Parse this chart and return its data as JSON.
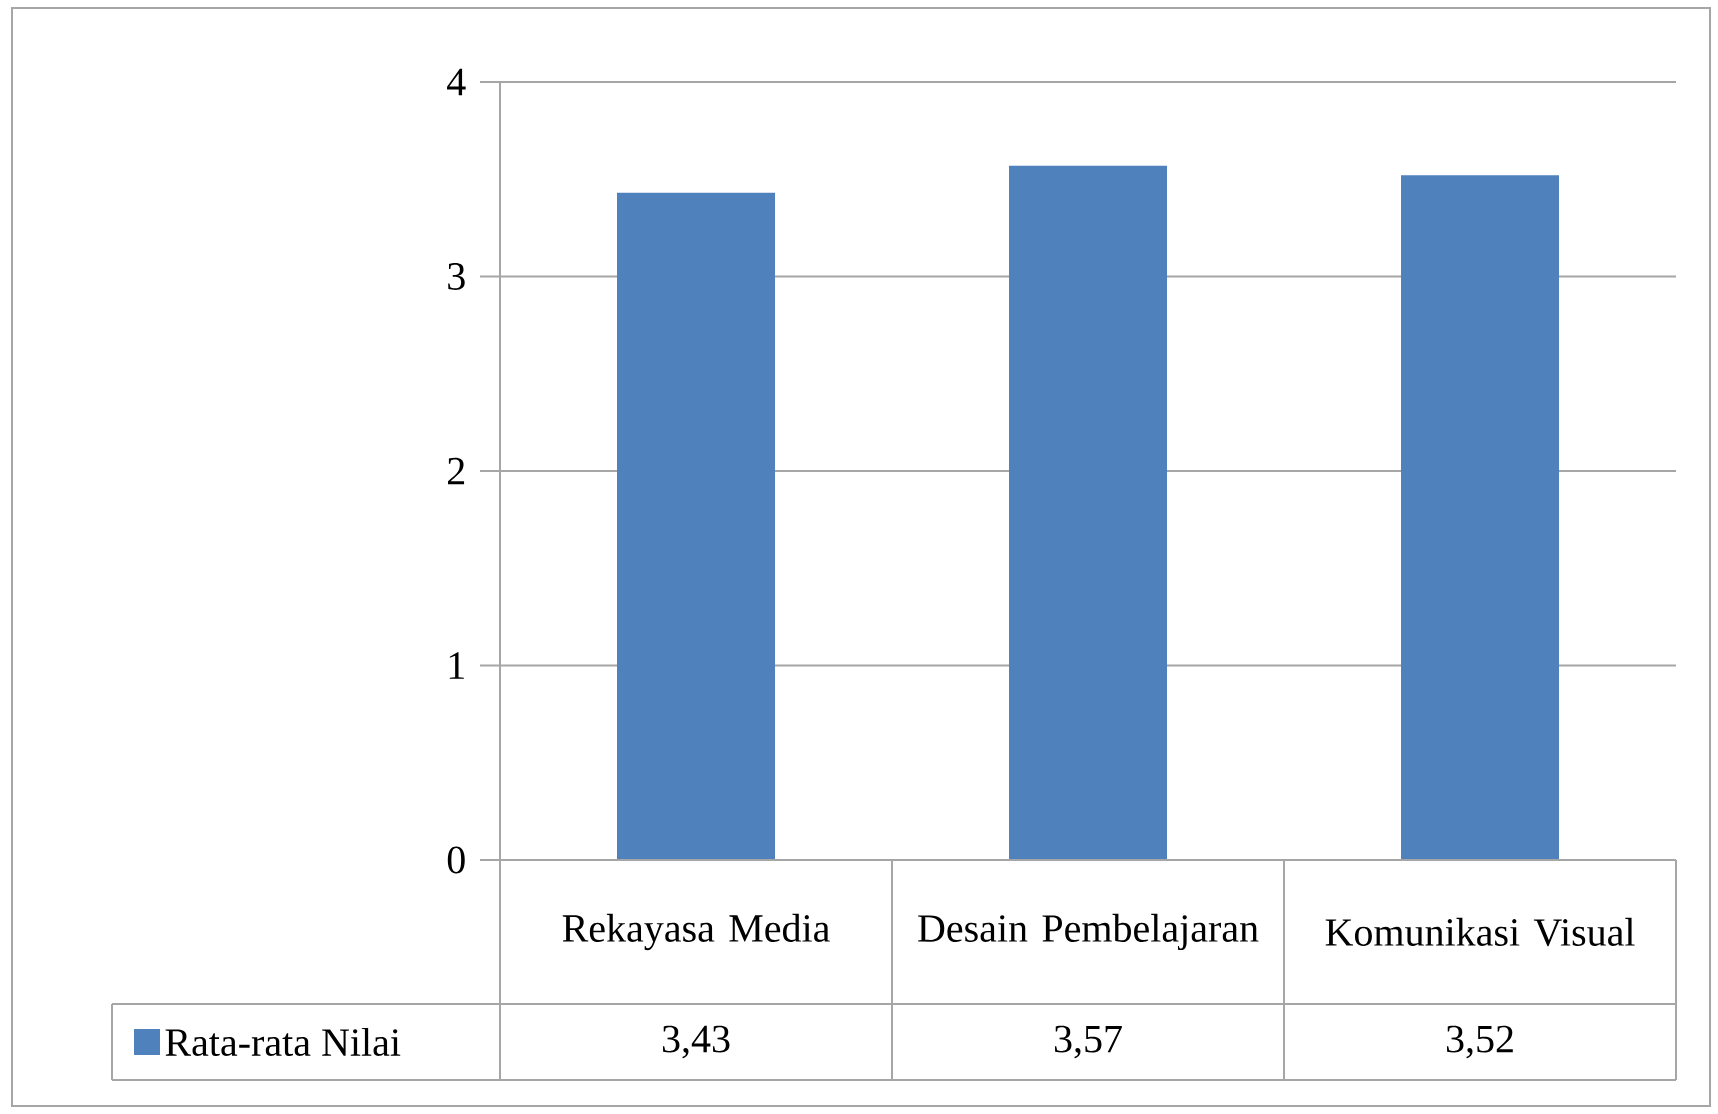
{
  "chart_data": {
    "type": "bar",
    "categories": [
      "Rekayasa Media",
      "Desain Pembelajaran",
      "Komunikasi Visual"
    ],
    "series": [
      {
        "name": "Rata-rata Nilai",
        "color": "#4f81bd",
        "values": [
          3.43,
          3.57,
          3.52
        ],
        "value_labels": [
          "3,43",
          "3,57",
          "3,52"
        ]
      }
    ],
    "ylim": [
      0,
      4
    ],
    "yticks": [
      0,
      1,
      2,
      3,
      4
    ],
    "grid": "y",
    "legend": "bottom"
  }
}
